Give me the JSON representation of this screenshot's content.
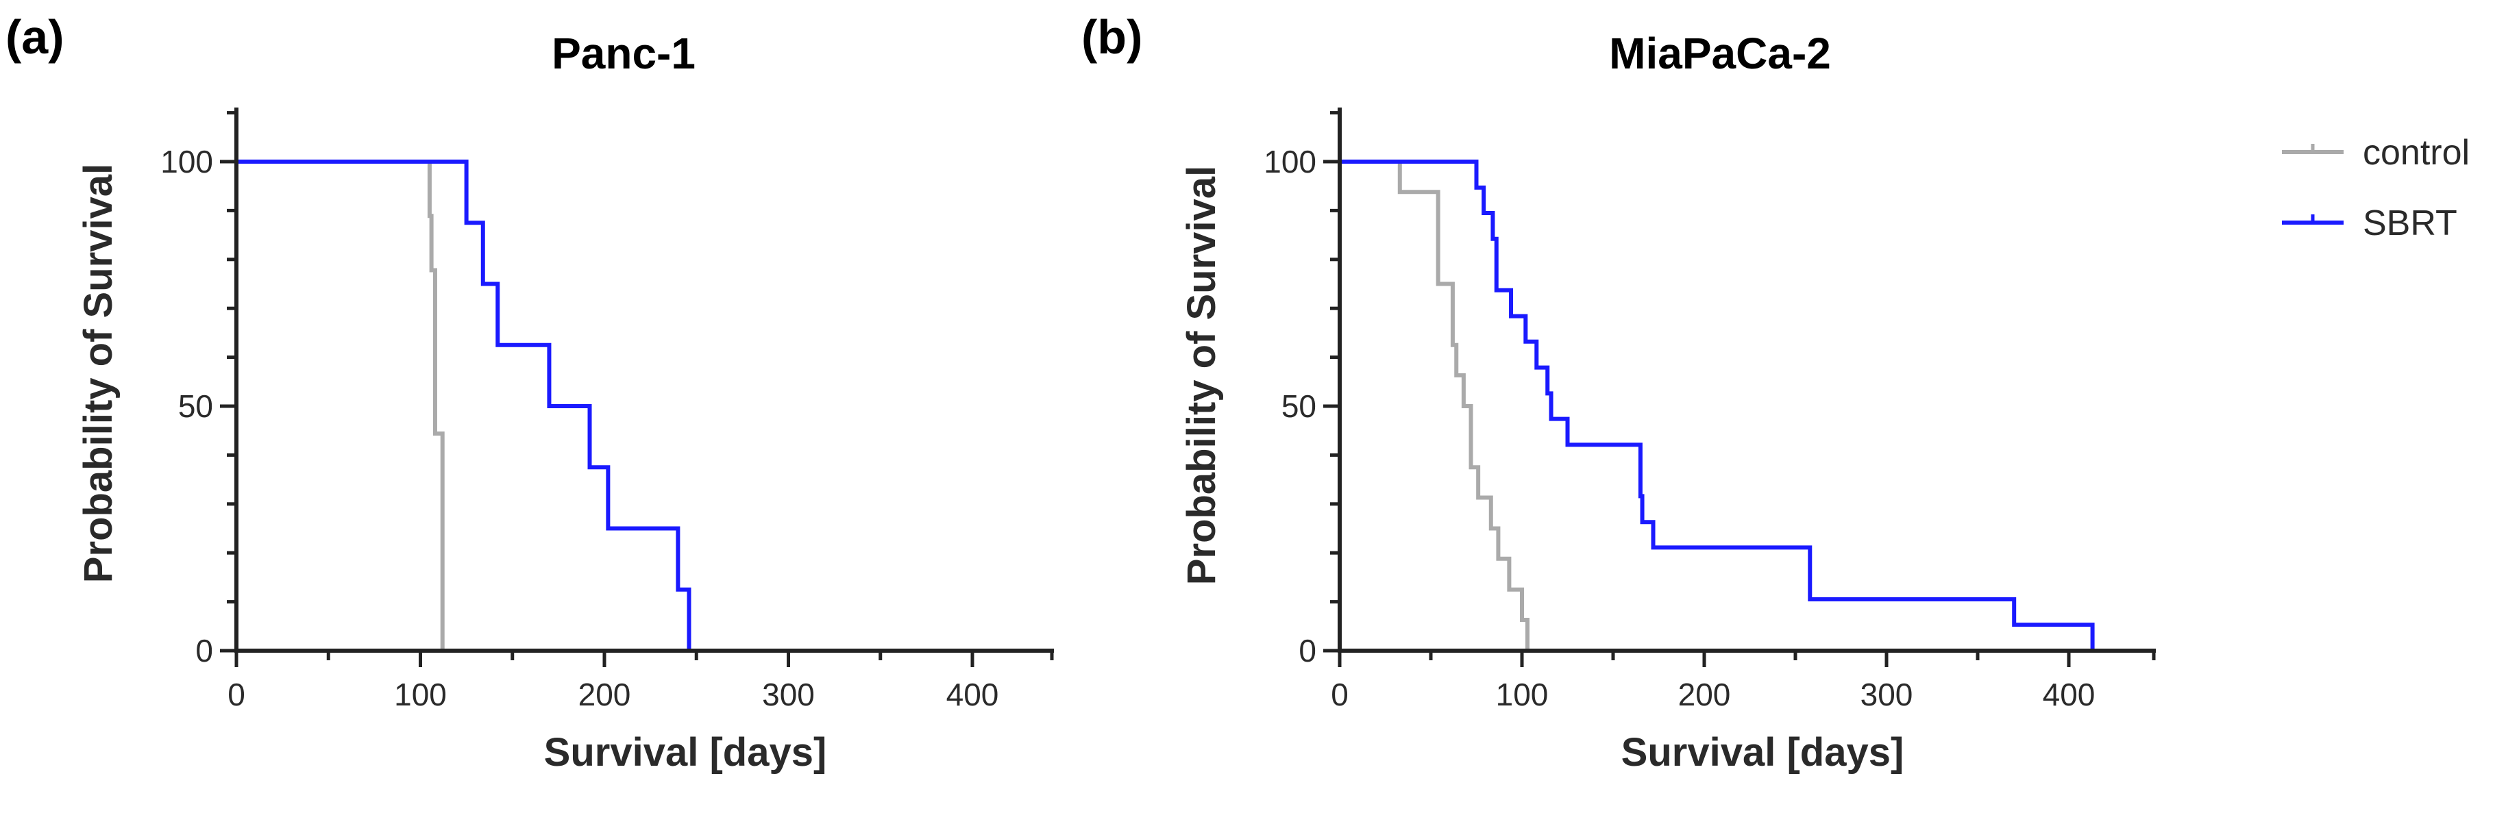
{
  "colors": {
    "control": "#aaaaaa",
    "SBRT": "#1a1aff"
  },
  "legend": [
    {
      "label": "control",
      "color": "#aaaaaa"
    },
    {
      "label": "SBRT",
      "color": "#1a1aff"
    }
  ],
  "chart_data": [
    {
      "panel_label": "(a)",
      "type": "line",
      "subtype": "kaplan-meier step",
      "title": "Panc-1",
      "xlabel": "Survival [days]",
      "ylabel": "Probability of Survival",
      "xlim": [
        0,
        450
      ],
      "ylim": [
        0,
        110
      ],
      "xticks": [
        0,
        100,
        200,
        300,
        400
      ],
      "yticks": [
        0,
        50,
        100
      ],
      "xtick_labels": [
        "0",
        "100",
        "200",
        "300",
        "400"
      ],
      "ytick_labels": [
        "0",
        "50",
        "100"
      ],
      "series": [
        {
          "name": "control",
          "x": [
            0,
            105,
            106,
            108,
            112
          ],
          "y": [
            100,
            88.9,
            77.8,
            44.4,
            0
          ]
        },
        {
          "name": "SBRT",
          "x": [
            0,
            125,
            134,
            142,
            170,
            192,
            202,
            240,
            246
          ],
          "y": [
            100,
            87.5,
            75,
            62.5,
            50,
            37.5,
            25,
            12.5,
            0
          ]
        }
      ]
    },
    {
      "panel_label": "(b)",
      "type": "line",
      "subtype": "kaplan-meier step",
      "title": "MiaPaCa-2",
      "xlabel": "Survival [days]",
      "ylabel": "Probability of Survival",
      "xlim": [
        0,
        450
      ],
      "ylim": [
        0,
        110
      ],
      "xticks": [
        0,
        100,
        200,
        300,
        400
      ],
      "yticks": [
        0,
        50,
        100
      ],
      "xtick_labels": [
        "0",
        "100",
        "200",
        "300",
        "400"
      ],
      "ytick_labels": [
        "0",
        "50",
        "100"
      ],
      "series": [
        {
          "name": "control",
          "x": [
            0,
            33,
            54,
            62,
            64,
            68,
            72,
            76,
            83,
            87,
            93,
            100,
            103
          ],
          "y": [
            100,
            93.8,
            75,
            62.5,
            56.3,
            50,
            37.5,
            31.3,
            25,
            18.8,
            12.5,
            6.3,
            0
          ]
        },
        {
          "name": "SBRT",
          "x": [
            0,
            75,
            79,
            84,
            86,
            94,
            102,
            108,
            114,
            116,
            125,
            165,
            166,
            168,
            172,
            258,
            370,
            413
          ],
          "y": [
            100,
            94.7,
            89.5,
            84.2,
            73.7,
            68.4,
            63.2,
            57.9,
            52.6,
            47.4,
            42.1,
            31.6,
            26.3,
            26.3,
            21.1,
            10.5,
            5.3,
            0
          ]
        }
      ]
    }
  ]
}
